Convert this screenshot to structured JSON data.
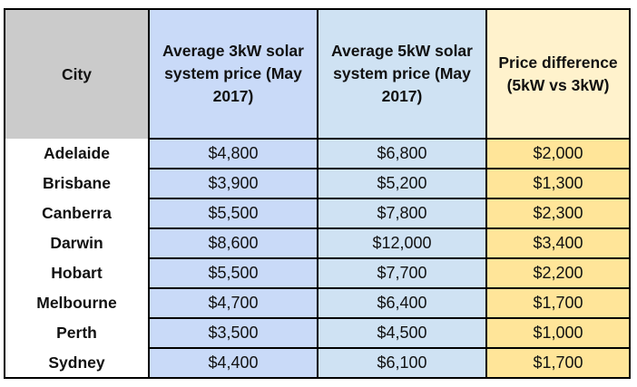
{
  "table": {
    "headers": [
      "City",
      "Average 3kW solar system price (May 2017)",
      "Average 5kW solar system price (May 2017)",
      "Price difference (5kW vs 3kW)"
    ],
    "rows": [
      {
        "city": "Adelaide",
        "price_3kw": "$4,800",
        "price_5kw": "$6,800",
        "difference": "$2,000"
      },
      {
        "city": "Brisbane",
        "price_3kw": "$3,900",
        "price_5kw": "$5,200",
        "difference": "$1,300"
      },
      {
        "city": "Canberra",
        "price_3kw": "$5,500",
        "price_5kw": "$7,800",
        "difference": "$2,300"
      },
      {
        "city": "Darwin",
        "price_3kw": "$8,600",
        "price_5kw": "$12,000",
        "difference": "$3,400"
      },
      {
        "city": "Hobart",
        "price_3kw": "$5,500",
        "price_5kw": "$7,700",
        "difference": "$2,200"
      },
      {
        "city": "Melbourne",
        "price_3kw": "$4,700",
        "price_5kw": "$6,400",
        "difference": "$1,700"
      },
      {
        "city": "Perth",
        "price_3kw": "$3,500",
        "price_5kw": "$4,500",
        "difference": "$1,000"
      },
      {
        "city": "Sydney",
        "price_3kw": "$4,400",
        "price_5kw": "$6,100",
        "difference": "$1,700"
      }
    ]
  },
  "colors": {
    "city_header_bg": "#cbcbcb",
    "col_3kw_bg": "#c9daf8",
    "col_5kw_bg": "#cfe2f3",
    "diff_header_bg": "#fff2cc",
    "diff_cell_bg": "#ffe599",
    "border": "#000000"
  }
}
